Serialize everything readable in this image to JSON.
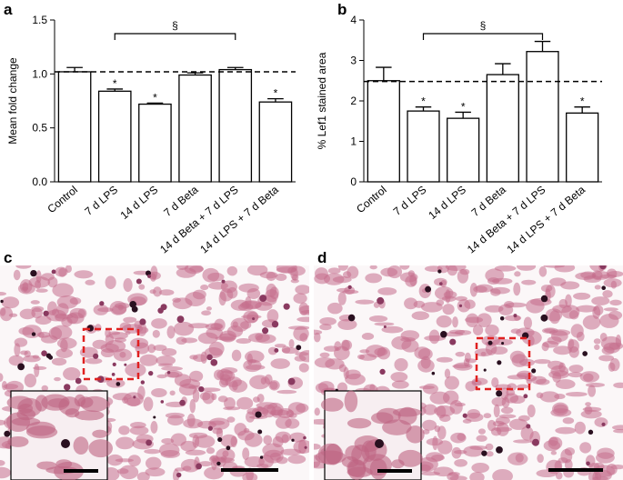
{
  "chart_data": [
    {
      "type": "bar",
      "panel_label": "a",
      "y_label": "Mean fold change",
      "categories": [
        "Control",
        "7 d LPS",
        "14 d LPS",
        "7 d Beta",
        "14 d Beta + 7 d LPS",
        "14 d LPS + 7 d Beta"
      ],
      "values": [
        1.02,
        0.84,
        0.72,
        0.99,
        1.04,
        0.74
      ],
      "errors": [
        0.04,
        0.02,
        0.01,
        0.02,
        0.02,
        0.03
      ],
      "color": "#ffffff",
      "reference_line": 1.02,
      "ylim": [
        0,
        1.5
      ],
      "yticks": [
        {
          "value": 0,
          "label": "0.0"
        },
        {
          "value": 0.5,
          "label": "0.5"
        },
        {
          "value": 1,
          "label": "1.0"
        },
        {
          "value": 1.5,
          "label": "1.5"
        }
      ],
      "annotations": [
        {
          "category_index": 1,
          "text": "*"
        },
        {
          "category_index": 2,
          "text": "*"
        },
        {
          "category_index": 5,
          "text": "*"
        }
      ],
      "bracket": {
        "from": 1,
        "to": 4,
        "text": "§"
      }
    },
    {
      "type": "bar",
      "panel_label": "b",
      "y_label": "% Lef1 stained area",
      "categories": [
        "Control",
        "7 d LPS",
        "14 d LPS",
        "7 d Beta",
        "14 d Beta + 7 d LPS",
        "14 d LPS + 7 d Beta"
      ],
      "values": [
        2.5,
        1.75,
        1.57,
        2.65,
        3.22,
        1.7
      ],
      "errors": [
        0.33,
        0.1,
        0.15,
        0.27,
        0.25,
        0.15
      ],
      "color": "#ffffff",
      "reference_line": 2.48,
      "ylim": [
        0,
        4
      ],
      "yticks": [
        0,
        1,
        2,
        3,
        4
      ],
      "annotations": [
        {
          "category_index": 1,
          "text": "*"
        },
        {
          "category_index": 2,
          "text": "*"
        },
        {
          "category_index": 5,
          "text": "*"
        }
      ],
      "bracket": {
        "from": 1,
        "to": 4,
        "text": "§"
      }
    }
  ],
  "images": [
    {
      "panel_label": "c"
    },
    {
      "panel_label": "d"
    }
  ]
}
